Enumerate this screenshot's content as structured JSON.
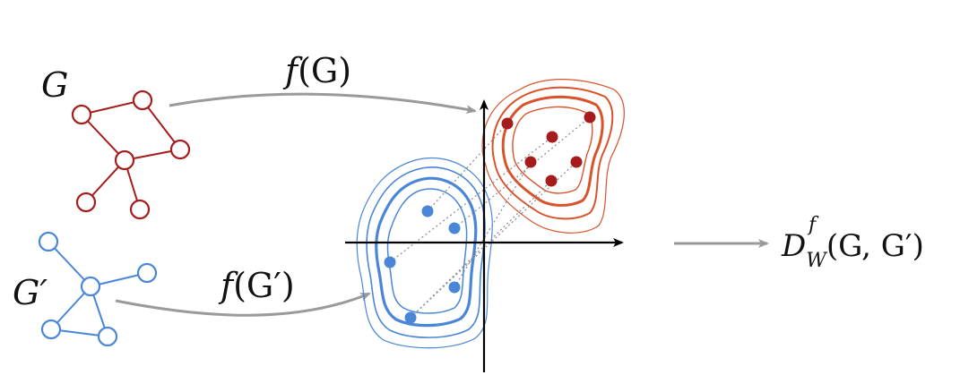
{
  "labels": {
    "graph_red": "G",
    "graph_blue": "G′",
    "map_red_fn": "f",
    "map_red_arg": "(G)",
    "map_blue_fn": "f",
    "map_blue_arg": "(G′)",
    "distance_main": "D",
    "distance_sub": "W",
    "distance_sup": "f",
    "distance_args": "(G, G′)"
  },
  "colors": {
    "red": "#A61C1C",
    "red_light": "#D8532B",
    "blue": "#4A86D8",
    "blue_dark": "#3E78C8",
    "arrow_gray": "#9A9A9A",
    "axis": "#000000",
    "coupling": "#8A8A8A"
  }
}
